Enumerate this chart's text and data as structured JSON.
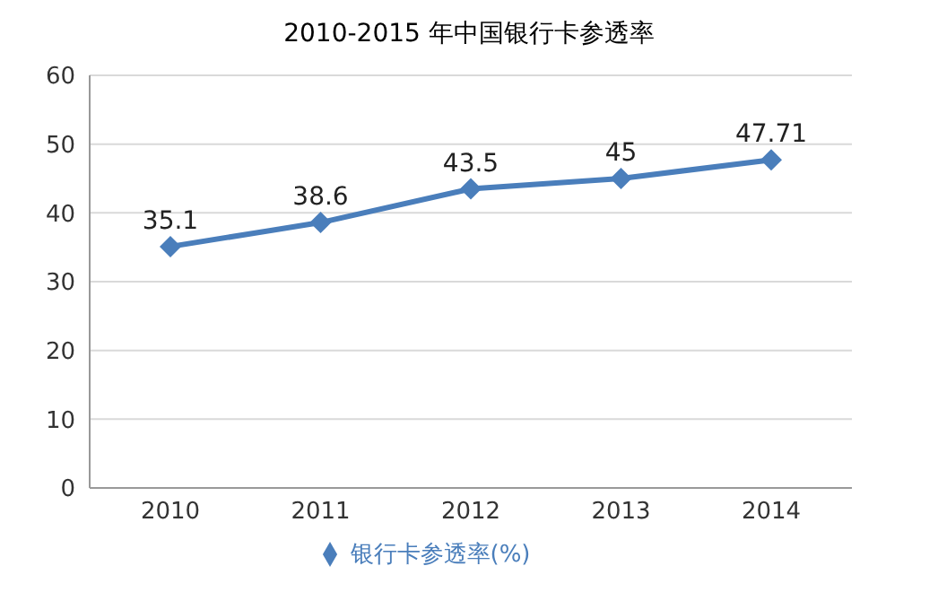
{
  "chart_data": {
    "type": "line",
    "title": "2010-2015  年中国银行卡参透率",
    "categories": [
      "2010",
      "2011",
      "2012",
      "2013",
      "2014"
    ],
    "series": [
      {
        "name": "银行卡参透率(%)",
        "color": "#4a7ebb",
        "values": [
          35.1,
          38.6,
          43.5,
          45,
          47.71
        ]
      }
    ],
    "ylim": [
      0,
      60
    ],
    "yticks": [
      0,
      10,
      20,
      30,
      40,
      50,
      60
    ],
    "grid": "y",
    "legend": "bottom",
    "marker": "diamond",
    "line_style": "solid",
    "data_labels": true
  }
}
